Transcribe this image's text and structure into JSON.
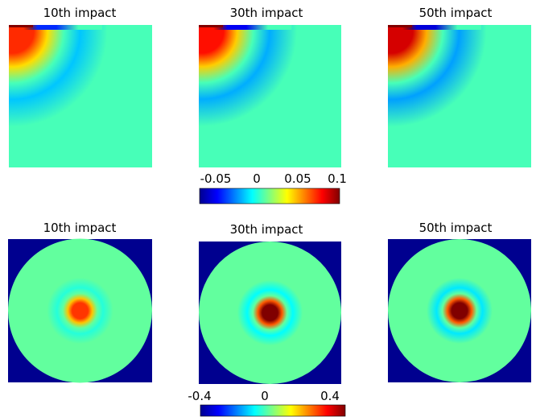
{
  "chart_data": [
    {
      "type": "heatmap",
      "title": "10th impact",
      "field": "quarter-domain",
      "shape": "square",
      "source_edge": "top",
      "peak_value": 0.07,
      "trough_value": -0.05,
      "background_value": 0.0,
      "color_scale": "jet",
      "clim": [
        -0.08,
        0.1
      ]
    },
    {
      "type": "heatmap",
      "title": "30th impact",
      "field": "quarter-domain",
      "shape": "square",
      "source_edge": "top",
      "peak_value": 0.075,
      "trough_value": -0.06,
      "background_value": 0.0,
      "color_scale": "jet",
      "clim": [
        -0.08,
        0.1
      ]
    },
    {
      "type": "heatmap",
      "title": "50th impact",
      "field": "quarter-domain",
      "shape": "square",
      "source_edge": "top",
      "peak_value": 0.085,
      "trough_value": -0.065,
      "background_value": 0.0,
      "color_scale": "jet",
      "clim": [
        -0.08,
        0.1
      ]
    },
    {
      "type": "heatmap",
      "title": "10th impact",
      "field": "full-disk",
      "shape": "circle",
      "center_value": 0.3,
      "ring_value": -0.05,
      "background_value": 0.0,
      "outside_value": -0.4,
      "color_scale": "jet",
      "clim": [
        -0.4,
        0.45
      ]
    },
    {
      "type": "heatmap",
      "title": "30th impact",
      "field": "full-disk",
      "shape": "circle",
      "center_value": 0.45,
      "ring_value": -0.08,
      "background_value": 0.0,
      "outside_value": -0.4,
      "color_scale": "jet",
      "clim": [
        -0.4,
        0.45
      ]
    },
    {
      "type": "heatmap",
      "title": "50th impact",
      "field": "full-disk",
      "shape": "circle",
      "center_value": 0.45,
      "ring_value": -0.1,
      "background_value": 0.0,
      "outside_value": -0.4,
      "color_scale": "jet",
      "clim": [
        -0.4,
        0.45
      ]
    }
  ],
  "colorbars": [
    {
      "clim": [
        -0.08,
        0.1
      ],
      "ticks": [
        {
          "value": -0.05,
          "label": "-0.05"
        },
        {
          "value": 0,
          "label": "0"
        },
        {
          "value": 0.05,
          "label": "0.05"
        },
        {
          "value": 0.1,
          "label": "0.1"
        }
      ]
    },
    {
      "clim": [
        -0.4,
        0.45
      ],
      "ticks": [
        {
          "value": -0.4,
          "label": "-0.4"
        },
        {
          "value": 0,
          "label": "0"
        },
        {
          "value": 0.4,
          "label": "0.4"
        }
      ]
    }
  ],
  "colors": {
    "outside": "#00008f",
    "background_field": "#40ffc0"
  }
}
